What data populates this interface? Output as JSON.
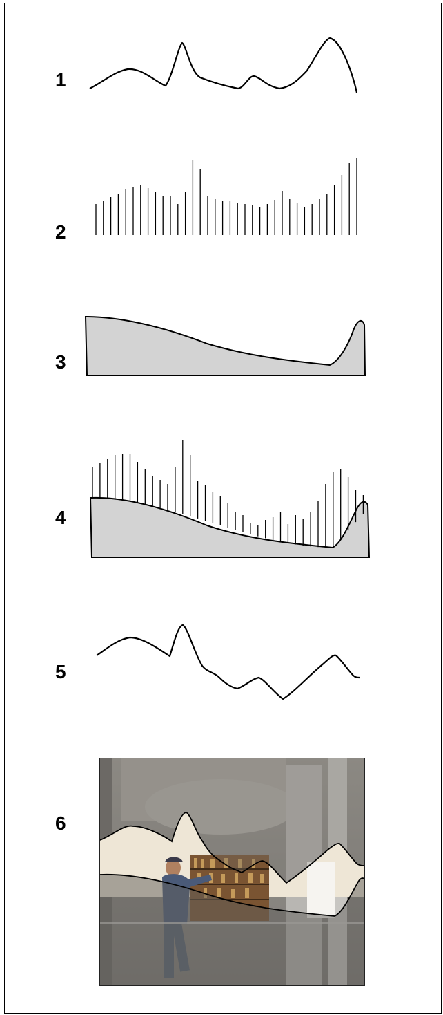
{
  "labels": {
    "p1": "1",
    "p2": "2",
    "p3": "3",
    "p4": "4",
    "p5": "5",
    "p6": "6"
  },
  "colors": {
    "line": "#000000",
    "fill": "#d3d3d3",
    "photo_wall": "#8a8680",
    "photo_bright": "#f2ece0",
    "photo_shelf": "#8a5a2e",
    "photo_person": "#4a5a78"
  }
}
